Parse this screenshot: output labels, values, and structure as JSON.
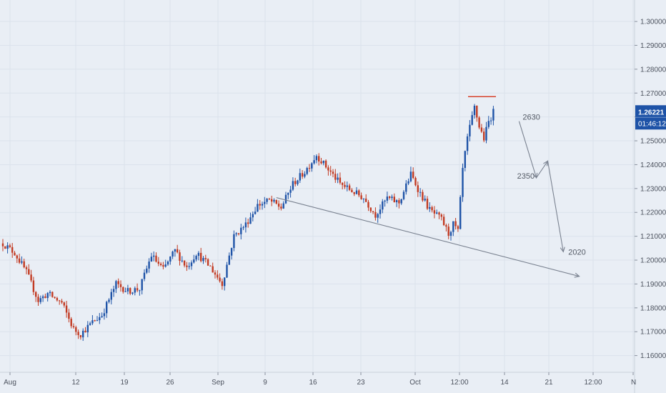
{
  "chart_data": {
    "type": "candlestick",
    "colors": {
      "up": "#1e53a7",
      "down": "#c23a22",
      "background": "#e9eef5",
      "grid": "#dbe2ec",
      "price_tag": "#1e53a7",
      "resistance": "#d6422b",
      "annotation": "#7a8290"
    },
    "y_axis": {
      "ticks": [
        "1.30000",
        "1.29000",
        "1.28000",
        "1.27000",
        "1.26000",
        "1.25000",
        "1.24000",
        "1.23000",
        "1.22000",
        "1.21000",
        "1.20000",
        "1.19000",
        "1.18000",
        "1.17000",
        "1.16000"
      ],
      "range": [
        1.153,
        1.309
      ]
    },
    "x_axis": {
      "ticks": [
        "Aug",
        "12",
        "19",
        "26",
        "Sep",
        "9",
        "16",
        "23",
        "Oct",
        "12:00",
        "14",
        "21",
        "12:00",
        "N"
      ]
    },
    "price_tag": {
      "price": "1.26221",
      "countdown": "01:46:12",
      "value": 1.26221
    },
    "waypoints": [
      [
        0,
        1.207
      ],
      [
        5,
        1.203
      ],
      [
        10,
        1.195
      ],
      [
        15,
        1.183
      ],
      [
        19,
        1.186
      ],
      [
        25,
        1.182
      ],
      [
        30,
        1.171
      ],
      [
        33,
        1.169
      ],
      [
        38,
        1.174
      ],
      [
        42,
        1.177
      ],
      [
        48,
        1.19
      ],
      [
        53,
        1.187
      ],
      [
        58,
        1.188
      ],
      [
        63,
        1.202
      ],
      [
        68,
        1.196
      ],
      [
        73,
        1.204
      ],
      [
        78,
        1.197
      ],
      [
        82,
        1.203
      ],
      [
        88,
        1.197
      ],
      [
        93,
        1.19
      ],
      [
        98,
        1.21
      ],
      [
        103,
        1.215
      ],
      [
        108,
        1.223
      ],
      [
        113,
        1.225
      ],
      [
        118,
        1.222
      ],
      [
        123,
        1.232
      ],
      [
        128,
        1.237
      ],
      [
        133,
        1.244
      ],
      [
        138,
        1.238
      ],
      [
        143,
        1.232
      ],
      [
        148,
        1.229
      ],
      [
        153,
        1.226
      ],
      [
        158,
        1.219
      ],
      [
        163,
        1.226
      ],
      [
        168,
        1.224
      ],
      [
        173,
        1.236
      ],
      [
        177,
        1.228
      ],
      [
        181,
        1.221
      ],
      [
        186,
        1.217
      ],
      [
        189,
        1.211
      ],
      [
        191,
        1.215
      ],
      [
        193,
        1.212
      ],
      [
        195,
        1.238
      ],
      [
        197,
        1.251
      ],
      [
        200,
        1.264
      ],
      [
        202,
        1.256
      ],
      [
        204,
        1.251
      ],
      [
        206,
        1.258
      ],
      [
        208,
        1.262
      ]
    ],
    "annotations": {
      "resistance_level": 1.2685,
      "trendline": [
        [
          116,
          1.2262
        ],
        [
          202,
          1.1977
        ]
      ],
      "projection_path": [
        [
          208,
          1.2582
        ],
        [
          212,
          1.2345
        ],
        [
          215,
          1.2415
        ],
        [
          221,
          1.2035
        ]
      ],
      "labels": [
        "2630",
        "2350",
        "2020"
      ]
    }
  }
}
